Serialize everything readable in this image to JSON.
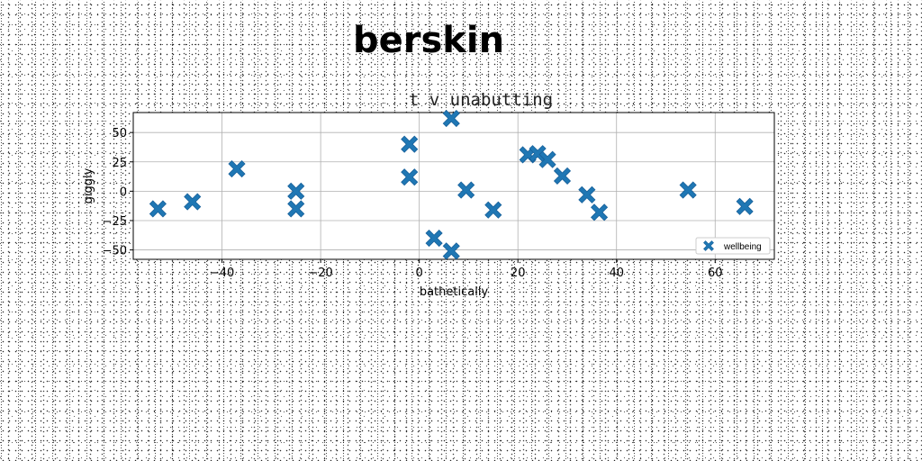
{
  "page_title": "berskin",
  "chart_data": {
    "type": "scatter",
    "title": "t v unabutting",
    "xlabel": "bathetically",
    "ylabel": "giggly",
    "xlim": [
      -58,
      72
    ],
    "ylim": [
      -58,
      67
    ],
    "xticks": [
      -40,
      -20,
      0,
      20,
      40,
      60
    ],
    "yticks": [
      -50,
      -25,
      0,
      25,
      50
    ],
    "grid": true,
    "legend_position": "lower right",
    "marker": "X",
    "color": "#1f77b4",
    "series": [
      {
        "name": "wellbeing",
        "points": [
          [
            -53,
            -15
          ],
          [
            -46,
            -9
          ],
          [
            -37,
            19
          ],
          [
            -25,
            0
          ],
          [
            -25,
            -15
          ],
          [
            -2,
            40
          ],
          [
            -2,
            12
          ],
          [
            3,
            -40
          ],
          [
            6.5,
            62
          ],
          [
            6.5,
            -51
          ],
          [
            9.5,
            1
          ],
          [
            15,
            -16
          ],
          [
            22,
            31
          ],
          [
            24,
            32
          ],
          [
            26,
            27
          ],
          [
            29,
            13
          ],
          [
            34,
            -3
          ],
          [
            36.5,
            -18
          ],
          [
            54.5,
            1
          ],
          [
            66,
            -13
          ]
        ]
      }
    ]
  }
}
